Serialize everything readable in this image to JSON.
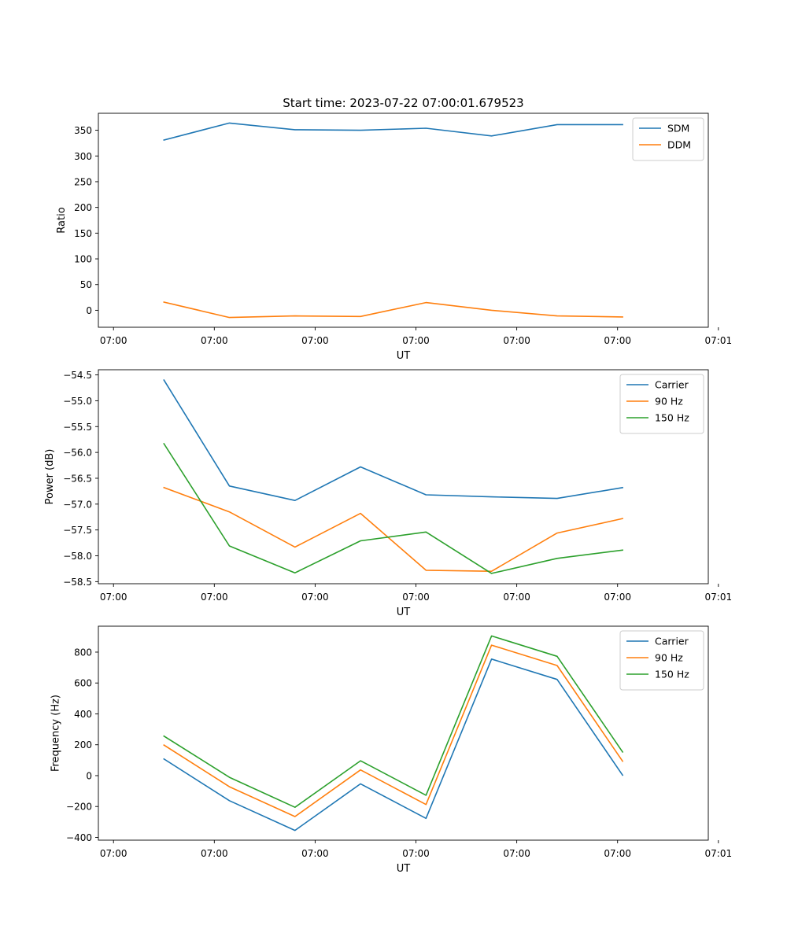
{
  "figure_title": "Start time: 2023-07-22 07:00:01.679523",
  "chart_data": [
    {
      "type": "line",
      "title": "Start time: 2023-07-22 07:00:01.679523",
      "xlabel": "UT",
      "ylabel": "Ratio",
      "x": [
        0.5,
        1.15,
        1.8,
        2.45,
        3.1,
        3.75,
        4.4,
        5.05
      ],
      "xlim": [
        -0.15,
        5.9
      ],
      "x_ticks": [
        0,
        1,
        2,
        3,
        4,
        5,
        6
      ],
      "x_tick_labels": [
        "07:00",
        "07:00",
        "07:00",
        "07:00",
        "07:00",
        "07:00",
        "07:01"
      ],
      "ylim": [
        -33,
        383
      ],
      "y_ticks": [
        0,
        50,
        100,
        150,
        200,
        250,
        300,
        350
      ],
      "y_tick_labels": [
        "0",
        "50",
        "100",
        "150",
        "200",
        "250",
        "300",
        "350"
      ],
      "legend_position": "top-right",
      "series": [
        {
          "name": "SDM",
          "color": "#1f77b4",
          "values": [
            331,
            364,
            351,
            350,
            354,
            339,
            361,
            361
          ]
        },
        {
          "name": "DDM",
          "color": "#ff7f0e",
          "values": [
            16,
            -14,
            -11,
            -12,
            15,
            0,
            -11,
            -13
          ]
        }
      ]
    },
    {
      "type": "line",
      "title": "",
      "xlabel": "UT",
      "ylabel": "Power (dB)",
      "x": [
        0.5,
        1.15,
        1.8,
        2.45,
        3.1,
        3.75,
        4.4,
        5.05
      ],
      "xlim": [
        -0.15,
        5.9
      ],
      "x_ticks": [
        0,
        1,
        2,
        3,
        4,
        5,
        6
      ],
      "x_tick_labels": [
        "07:00",
        "07:00",
        "07:00",
        "07:00",
        "07:00",
        "07:00",
        "07:01"
      ],
      "ylim": [
        -58.54,
        -54.4
      ],
      "y_ticks": [
        -54.5,
        -55.0,
        -55.5,
        -56.0,
        -56.5,
        -57.0,
        -57.5,
        -58.0,
        -58.5
      ],
      "y_tick_labels": [
        "−54.5",
        "−55.0",
        "−55.5",
        "−56.0",
        "−56.5",
        "−57.0",
        "−57.5",
        "−58.0",
        "−58.5"
      ],
      "legend_position": "top-right",
      "series": [
        {
          "name": "Carrier",
          "color": "#1f77b4",
          "values": [
            -54.6,
            -56.65,
            -56.93,
            -56.28,
            -56.82,
            -56.86,
            -56.89,
            -56.68
          ]
        },
        {
          "name": "90 Hz",
          "color": "#ff7f0e",
          "values": [
            -56.68,
            -57.15,
            -57.83,
            -57.18,
            -58.28,
            -58.3,
            -57.56,
            -57.28
          ]
        },
        {
          "name": "150 Hz",
          "color": "#2ca02c",
          "values": [
            -55.83,
            -57.81,
            -58.33,
            -57.71,
            -57.54,
            -58.34,
            -58.05,
            -57.89
          ]
        }
      ]
    },
    {
      "type": "line",
      "title": "",
      "xlabel": "UT",
      "ylabel": "Frequency (Hz)",
      "x": [
        0.5,
        1.15,
        1.8,
        2.45,
        3.1,
        3.75,
        4.4,
        5.05
      ],
      "xlim": [
        -0.15,
        5.9
      ],
      "x_ticks": [
        0,
        1,
        2,
        3,
        4,
        5,
        6
      ],
      "x_tick_labels": [
        "07:00",
        "07:00",
        "07:00",
        "07:00",
        "07:00",
        "07:00",
        "07:01"
      ],
      "ylim": [
        -418,
        968
      ],
      "y_ticks": [
        -400,
        -200,
        0,
        200,
        400,
        600,
        800
      ],
      "y_tick_labels": [
        "−400",
        "−200",
        "0",
        "200",
        "400",
        "600",
        "800"
      ],
      "legend_position": "top-right",
      "series": [
        {
          "name": "Carrier",
          "color": "#1f77b4",
          "values": [
            108,
            -162,
            -355,
            -53,
            -277,
            755,
            623,
            3
          ]
        },
        {
          "name": "90 Hz",
          "color": "#ff7f0e",
          "values": [
            198,
            -72,
            -265,
            37,
            -187,
            845,
            713,
            93
          ]
        },
        {
          "name": "150 Hz",
          "color": "#2ca02c",
          "values": [
            256,
            -11,
            -205,
            96,
            -127,
            905,
            773,
            153
          ]
        }
      ]
    }
  ]
}
